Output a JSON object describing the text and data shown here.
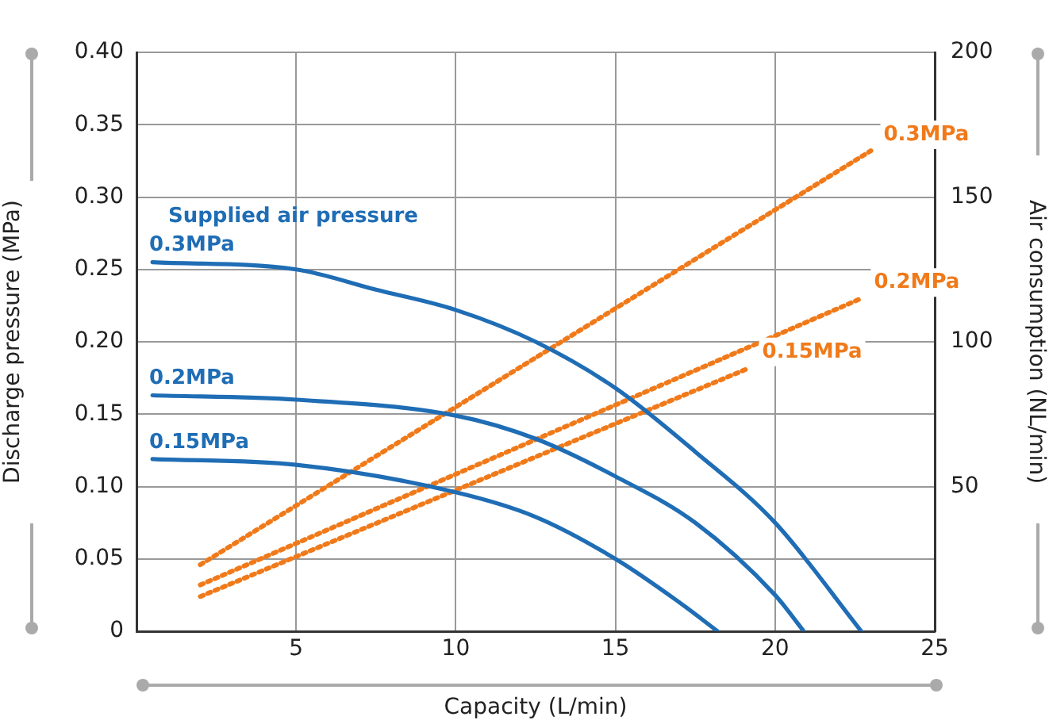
{
  "chart_data": {
    "type": "line",
    "xlabel": "Capacity (L/min)",
    "ylabel": "Discharge pressure (MPa)",
    "y2label": "Air consumption (NL/min)",
    "annotations": [
      "Supplied air pressure"
    ],
    "series": [
      {
        "name": "0.3MPa",
        "color": "#1f6db5",
        "x": [
          0.5,
          5,
          7.5,
          10,
          12.5,
          15,
          17.5,
          20,
          22.7
        ],
        "values": [
          0.255,
          0.25,
          0.236,
          0.222,
          0.2,
          0.168,
          0.124,
          0.075,
          0
        ]
      },
      {
        "name": "0.2MPa",
        "color": "#1f6db5",
        "x": [
          0.5,
          5,
          10,
          12.5,
          15,
          17.5,
          20,
          20.9
        ],
        "values": [
          0.163,
          0.16,
          0.149,
          0.133,
          0.107,
          0.075,
          0.025,
          0
        ]
      },
      {
        "name": "0.15MPa",
        "color": "#1f6db5",
        "x": [
          0.5,
          5,
          10,
          12.5,
          15,
          17,
          18.2
        ],
        "values": [
          0.119,
          0.115,
          0.096,
          0.079,
          0.05,
          0.02,
          0
        ]
      },
      {
        "name": "0.3MPa",
        "color": "#f07a1a",
        "axis": "y2",
        "line_style": "dotted",
        "x": [
          2,
          23
        ],
        "values": [
          23,
          166
        ]
      },
      {
        "name": "0.2MPa",
        "color": "#f07a1a",
        "axis": "y2",
        "line_style": "dotted",
        "x": [
          2,
          22.7
        ],
        "values": [
          16,
          115
        ]
      },
      {
        "name": "0.15MPa",
        "color": "#f07a1a",
        "axis": "y2",
        "line_style": "dotted",
        "x": [
          2,
          19.2
        ],
        "values": [
          12,
          91
        ]
      }
    ],
    "xlim": [
      0,
      25
    ],
    "xticks": [
      5,
      10,
      15,
      20,
      25
    ],
    "ylim": [
      0,
      0.4
    ],
    "yticks": [
      0,
      0.05,
      {
        "value": 0.1,
        "label": "0.10"
      },
      0.15,
      {
        "value": 0.2,
        "label": "0.20"
      },
      0.25,
      {
        "value": 0.3,
        "label": "0.30"
      },
      0.35,
      {
        "value": 0.4,
        "label": "0.40"
      }
    ],
    "y2lim": [
      0,
      200
    ],
    "y2ticks": [
      50,
      100,
      150,
      200
    ],
    "grid": true,
    "legend": false,
    "marker": "none"
  }
}
